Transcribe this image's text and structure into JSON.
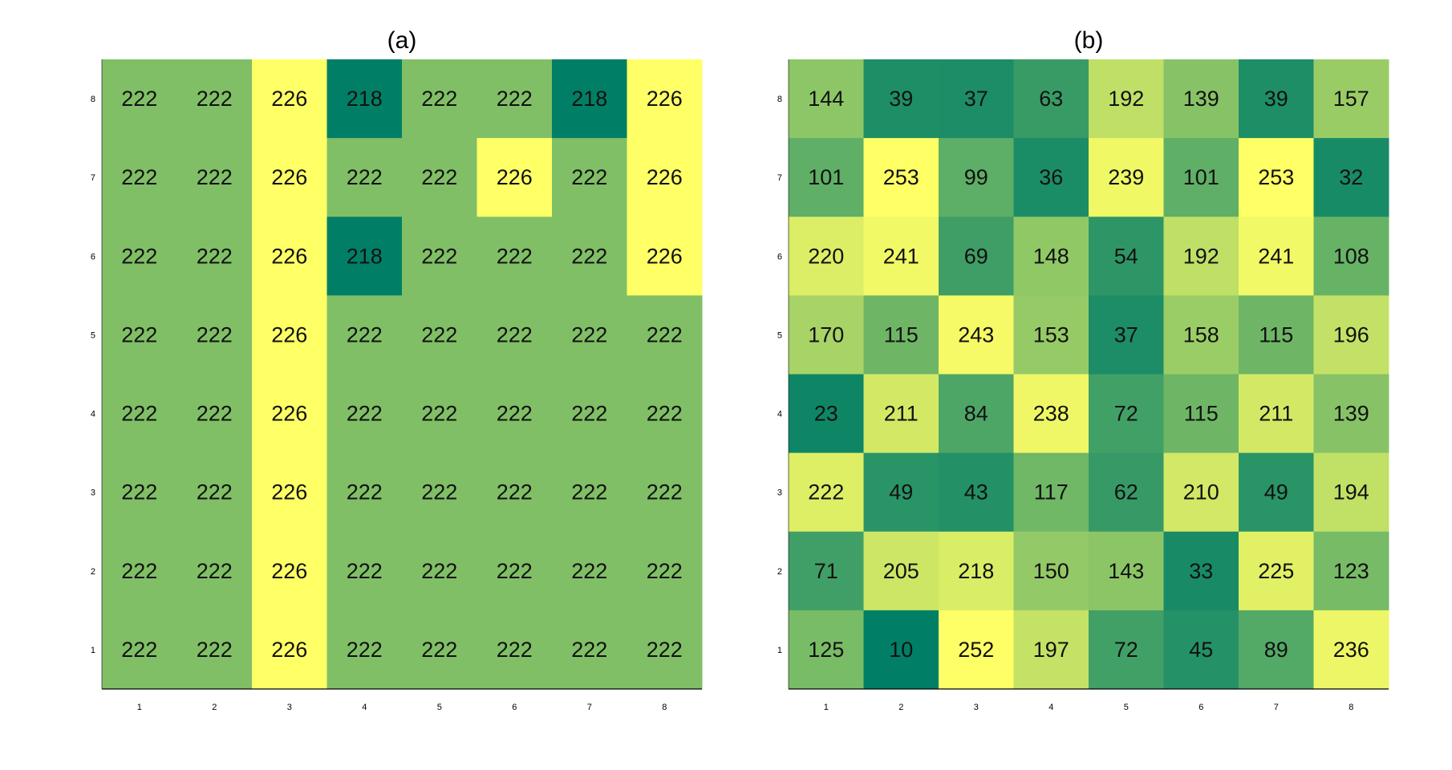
{
  "chart_data": [
    {
      "type": "heatmap",
      "title": "(a)",
      "xlabel": "",
      "ylabel": "",
      "x": [
        1,
        2,
        3,
        4,
        5,
        6,
        7,
        8
      ],
      "y": [
        1,
        2,
        3,
        4,
        5,
        6,
        7,
        8
      ],
      "xtick_labels": [
        "1",
        "2",
        "3",
        "4",
        "5",
        "6",
        "7",
        "8"
      ],
      "ytick_labels": [
        "1",
        "2",
        "3",
        "4",
        "5",
        "6",
        "7",
        "8"
      ],
      "rows_top_to_bottom": [
        8,
        7,
        6,
        5,
        4,
        3,
        2,
        1
      ],
      "values": [
        [
          222,
          222,
          226,
          218,
          222,
          222,
          218,
          226
        ],
        [
          222,
          222,
          226,
          222,
          222,
          226,
          222,
          226
        ],
        [
          222,
          222,
          226,
          218,
          222,
          222,
          222,
          226
        ],
        [
          222,
          222,
          226,
          222,
          222,
          222,
          222,
          222
        ],
        [
          222,
          222,
          226,
          222,
          222,
          222,
          222,
          222
        ],
        [
          222,
          222,
          226,
          222,
          222,
          222,
          222,
          222
        ],
        [
          222,
          222,
          226,
          222,
          222,
          222,
          222,
          222
        ],
        [
          222,
          222,
          226,
          222,
          222,
          222,
          222,
          222
        ]
      ],
      "colormap": "summer",
      "grid": false
    },
    {
      "type": "heatmap",
      "title": "(b)",
      "xlabel": "",
      "ylabel": "",
      "x": [
        1,
        2,
        3,
        4,
        5,
        6,
        7,
        8
      ],
      "y": [
        1,
        2,
        3,
        4,
        5,
        6,
        7,
        8
      ],
      "xtick_labels": [
        "1",
        "2",
        "3",
        "4",
        "5",
        "6",
        "7",
        "8"
      ],
      "ytick_labels": [
        "1",
        "2",
        "3",
        "4",
        "5",
        "6",
        "7",
        "8"
      ],
      "rows_top_to_bottom": [
        8,
        7,
        6,
        5,
        4,
        3,
        2,
        1
      ],
      "values": [
        [
          144,
          39,
          37,
          63,
          192,
          139,
          39,
          157
        ],
        [
          101,
          253,
          99,
          36,
          239,
          101,
          253,
          32
        ],
        [
          220,
          241,
          69,
          148,
          54,
          192,
          241,
          108
        ],
        [
          170,
          115,
          243,
          153,
          37,
          158,
          115,
          196
        ],
        [
          23,
          211,
          84,
          238,
          72,
          115,
          211,
          139
        ],
        [
          222,
          49,
          43,
          117,
          62,
          210,
          49,
          194
        ],
        [
          71,
          205,
          218,
          150,
          143,
          33,
          225,
          123
        ],
        [
          125,
          10,
          252,
          197,
          72,
          45,
          89,
          236
        ]
      ],
      "colormap": "summer",
      "grid": false
    }
  ],
  "colors": {
    "colormap_low": "#007f66",
    "colormap_high": "#ffff66",
    "axis": "#000000",
    "text": "#111111"
  }
}
